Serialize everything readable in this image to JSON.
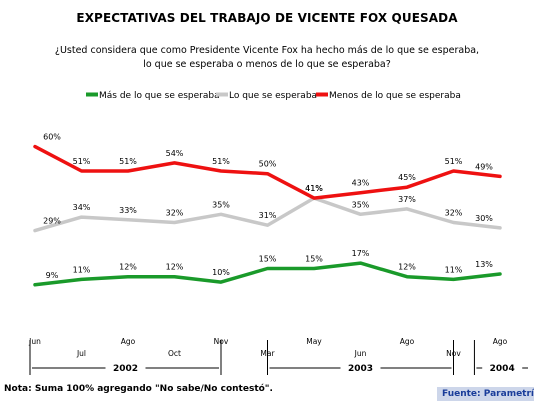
{
  "title": "EXPECTATIVAS DEL TRABAJO DE VICENTE FOX QUESADA",
  "subtitle_line1": "¿Usted considera que como Presidente Vicente Fox ha hecho más de lo que se esperaba,",
  "subtitle_line2": "lo que se esperaba o menos de lo que se esperaba?",
  "note": "Nota: Suma 100% agregando  \"No sabe/No contestó\".",
  "source": "Fuente: Parametría",
  "chart_data": {
    "type": "line",
    "x": [
      "Jun",
      "Jul",
      "Ago",
      "Oct",
      "Nov",
      "Mar",
      "May",
      "Jun",
      "Ago",
      "Nov",
      "Ago"
    ],
    "x_tick_rows": [
      "top",
      "bottom",
      "top",
      "bottom",
      "top",
      "bottom",
      "top",
      "bottom",
      "top",
      "bottom",
      "top"
    ],
    "years": [
      {
        "label": "2002",
        "from": 0,
        "to": 4
      },
      {
        "label": "2003",
        "from": 5,
        "to": 9
      },
      {
        "label": "2004",
        "from": 10,
        "to": 10
      }
    ],
    "series": [
      {
        "name": "Más de lo que se esperaba",
        "color": "#1a9a2a",
        "values": [
          9,
          11,
          12,
          12,
          10,
          15,
          15,
          17,
          12,
          11,
          13
        ]
      },
      {
        "name": "Lo que se esperaba",
        "color": "#c8c8c8",
        "values": [
          29,
          34,
          33,
          32,
          35,
          31,
          41,
          35,
          37,
          32,
          30
        ]
      },
      {
        "name": "Menos de lo que se esperaba",
        "color": "#ee1111",
        "values": [
          60,
          51,
          51,
          54,
          51,
          50,
          41,
          43,
          45,
          51,
          49
        ]
      }
    ],
    "value_suffix": "%",
    "legend_position": "top",
    "grid": false
  }
}
